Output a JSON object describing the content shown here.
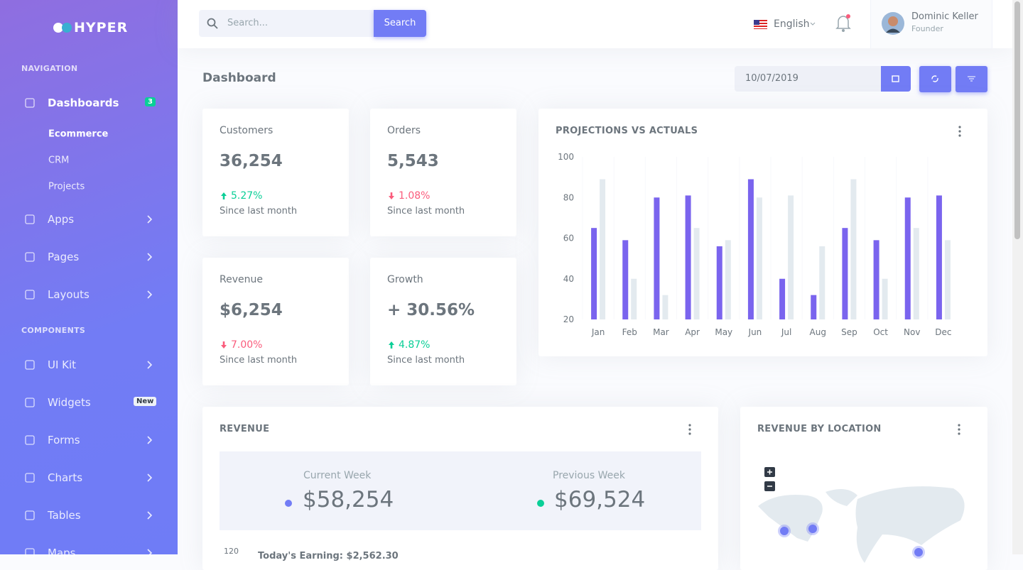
{
  "sidebar": {
    "brand": "HYPER",
    "sections": [
      {
        "title": "NAVIGATION",
        "items": [
          {
            "label": "Dashboards",
            "badge": "3",
            "children": [
              "Ecommerce",
              "CRM",
              "Projects"
            ]
          },
          {
            "label": "Apps"
          },
          {
            "label": "Pages"
          },
          {
            "label": "Layouts"
          }
        ]
      },
      {
        "title": "COMPONENTS",
        "items": [
          {
            "label": "UI Kit"
          },
          {
            "label": "Widgets",
            "badge": "New"
          },
          {
            "label": "Forms"
          },
          {
            "label": "Charts"
          },
          {
            "label": "Tables"
          },
          {
            "label": "Maps"
          }
        ]
      }
    ]
  },
  "topbar": {
    "search_placeholder": "Search...",
    "search_button": "Search",
    "language": "English",
    "user": {
      "name": "Dominic Keller",
      "role": "Founder"
    }
  },
  "page": {
    "title": "Dashboard",
    "date": "10/07/2019"
  },
  "stats": [
    {
      "label": "Customers",
      "value": "36,254",
      "change": "5.27%",
      "trend": "up",
      "note": "Since last month"
    },
    {
      "label": "Orders",
      "value": "5,543",
      "change": "1.08%",
      "trend": "down",
      "note": "Since last month"
    },
    {
      "label": "Revenue",
      "value": "$6,254",
      "change": "7.00%",
      "trend": "down",
      "note": "Since last month"
    },
    {
      "label": "Growth",
      "value": "+ 30.56%",
      "change": "4.87%",
      "trend": "up",
      "note": "Since last month"
    }
  ],
  "chart_data": {
    "type": "bar",
    "title": "PROJECTIONS VS ACTUALS",
    "categories": [
      "Jan",
      "Feb",
      "Mar",
      "Apr",
      "May",
      "Jun",
      "Jul",
      "Aug",
      "Sep",
      "Oct",
      "Nov",
      "Dec"
    ],
    "series": [
      {
        "color": "#7a64ee",
        "values": [
          65,
          59,
          80,
          81,
          56,
          89,
          40,
          32,
          65,
          59,
          80,
          81
        ]
      },
      {
        "color": "#e3eaef",
        "values": [
          89,
          40,
          32,
          65,
          59,
          80,
          81,
          56,
          89,
          40,
          65,
          59
        ]
      }
    ],
    "ylim": [
      20,
      100
    ],
    "yticks": [
      20,
      40,
      60,
      80,
      100
    ]
  },
  "revenue": {
    "title": "REVENUE",
    "current_label": "Current Week",
    "current_value": "$58,254",
    "previous_label": "Previous Week",
    "previous_value": "$69,524",
    "axis_tick": "120",
    "earning": "Today's Earning: $2,562.30"
  },
  "location": {
    "title": "REVENUE BY LOCATION"
  }
}
